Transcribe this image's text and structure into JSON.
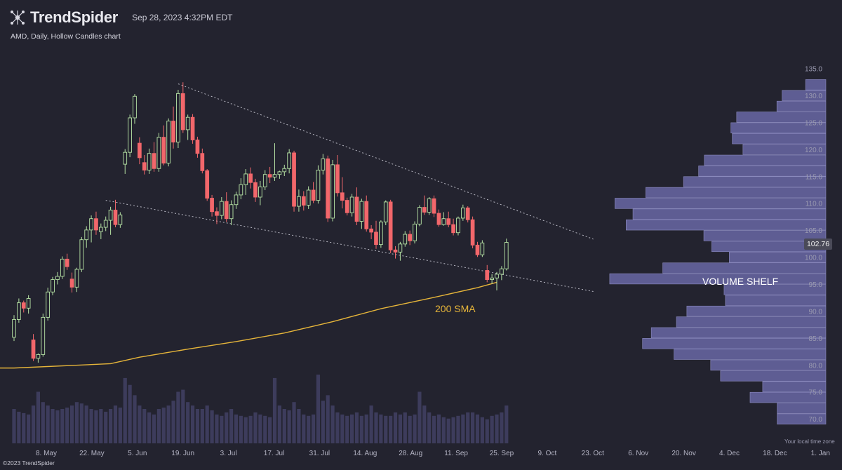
{
  "header": {
    "brand": "TrendSpider",
    "timestamp": "Sep 28, 2023 4:32PM EDT",
    "chart_title": "AMD, Daily, Hollow Candles chart",
    "copyright": "©2023 TrendSpider",
    "timezone_note": "Your local time zone"
  },
  "price_badge": "102.76",
  "annotations": {
    "sma": "200 SMA",
    "volume_shelf": "VOLUME SHELF"
  },
  "colors": {
    "background": "#23232f",
    "up": "#b7e4a5",
    "down": "#f2676b",
    "sma": "#e6b53a",
    "volume_profile": "#5e5d93",
    "volume_bars": "#3d3c5c",
    "trendline": "#b9b9c4"
  },
  "chart_data": {
    "type": "candlestick",
    "ylim": [
      68,
      138
    ],
    "y_ticks": [
      70,
      75,
      80,
      85,
      90,
      95,
      100,
      105,
      110,
      115,
      120,
      125,
      130,
      135
    ],
    "x_ticks": [
      "8. May",
      "22. May",
      "5. Jun",
      "19. Jun",
      "3. Jul",
      "17. Jul",
      "31. Jul",
      "14. Aug",
      "28. Aug",
      "11. Sep",
      "25. Sep",
      "9. Oct",
      "23. Oct",
      "6. Nov",
      "20. Nov",
      "4. Dec",
      "18. Dec",
      "1. Jan"
    ],
    "candles": [
      [
        85.2,
        89.3,
        84.5,
        88.5
      ],
      [
        88.5,
        92.4,
        87.9,
        91.6
      ],
      [
        91.6,
        92.0,
        89.8,
        90.6
      ],
      [
        90.6,
        93.0,
        89.6,
        92.4
      ],
      [
        84.7,
        85.8,
        80.8,
        81.3
      ],
      [
        81.3,
        82.2,
        80.5,
        82.0
      ],
      [
        82.0,
        89.6,
        81.6,
        88.9
      ],
      [
        88.9,
        94.4,
        88.3,
        93.6
      ],
      [
        93.6,
        96.4,
        93.0,
        95.9
      ],
      [
        95.9,
        97.3,
        95.0,
        96.5
      ],
      [
        96.5,
        100.2,
        96.0,
        99.7
      ],
      [
        99.7,
        100.7,
        97.7,
        98.3
      ],
      [
        96.0,
        97.2,
        93.5,
        94.5
      ],
      [
        94.5,
        98.1,
        93.6,
        97.8
      ],
      [
        97.8,
        103.8,
        97.3,
        103.3
      ],
      [
        103.3,
        105.8,
        101.8,
        105.1
      ],
      [
        105.1,
        107.8,
        102.8,
        107.2
      ],
      [
        107.2,
        108.5,
        104.2,
        105.1
      ],
      [
        104.8,
        106.3,
        103.4,
        105.6
      ],
      [
        105.6,
        107.6,
        104.9,
        106.9
      ],
      [
        106.9,
        109.4,
        104.2,
        108.8
      ],
      [
        108.8,
        110.7,
        105.6,
        106.1
      ],
      [
        106.1,
        108.4,
        105.5,
        107.9
      ],
      [
        117.3,
        120.1,
        115.5,
        119.5
      ],
      [
        119.5,
        126.5,
        118.6,
        125.9
      ],
      [
        125.9,
        130.3,
        124.8,
        129.9
      ],
      [
        121.2,
        122.3,
        117.3,
        118.5
      ],
      [
        117.6,
        119.0,
        115.4,
        116.2
      ],
      [
        116.2,
        120.2,
        115.5,
        119.3
      ],
      [
        119.3,
        121.4,
        115.9,
        116.5
      ],
      [
        116.5,
        123.1,
        115.9,
        122.3
      ],
      [
        122.3,
        124.5,
        117.1,
        117.5
      ],
      [
        117.5,
        125.8,
        116.9,
        125.3
      ],
      [
        125.3,
        128.0,
        120.2,
        121.4
      ],
      [
        121.4,
        131.1,
        120.3,
        130.4
      ],
      [
        130.4,
        132.5,
        123.1,
        123.7
      ],
      [
        123.7,
        126.5,
        121.8,
        126.0
      ],
      [
        126.0,
        126.6,
        121.1,
        121.8
      ],
      [
        121.8,
        122.4,
        118.5,
        119.3
      ],
      [
        119.3,
        120.2,
        115.6,
        116.1
      ],
      [
        116.1,
        116.4,
        110.5,
        111.0
      ],
      [
        111.0,
        111.6,
        107.6,
        108.5
      ],
      [
        108.5,
        109.3,
        106.2,
        107.8
      ],
      [
        107.8,
        111.2,
        107.1,
        110.4
      ],
      [
        110.4,
        112.1,
        106.6,
        107.2
      ],
      [
        107.2,
        110.6,
        106.0,
        109.8
      ],
      [
        109.8,
        112.2,
        109.0,
        111.6
      ],
      [
        111.6,
        114.7,
        110.8,
        113.5
      ],
      [
        113.5,
        116.4,
        111.6,
        115.5
      ],
      [
        115.5,
        116.7,
        112.8,
        113.9
      ],
      [
        113.9,
        114.6,
        110.3,
        111.2
      ],
      [
        111.2,
        114.2,
        109.7,
        113.1
      ],
      [
        113.1,
        116.2,
        112.5,
        115.4
      ],
      [
        115.4,
        116.8,
        113.8,
        114.9
      ],
      [
        114.9,
        121.2,
        114.2,
        115.4
      ],
      [
        115.4,
        116.1,
        114.6,
        115.9
      ],
      [
        115.9,
        117.2,
        115.1,
        116.5
      ],
      [
        116.5,
        120.1,
        115.6,
        119.4
      ],
      [
        119.4,
        119.8,
        108.5,
        109.5
      ],
      [
        109.5,
        112.6,
        108.5,
        111.3
      ],
      [
        111.3,
        112.3,
        108.7,
        109.7
      ],
      [
        109.7,
        113.2,
        109.0,
        112.5
      ],
      [
        112.5,
        114.0,
        110.1,
        110.6
      ],
      [
        110.6,
        117.1,
        110.0,
        116.2
      ],
      [
        116.2,
        119.2,
        115.4,
        118.3
      ],
      [
        118.3,
        118.9,
        106.6,
        107.3
      ],
      [
        107.3,
        118.1,
        106.7,
        117.2
      ],
      [
        117.2,
        119.0,
        111.3,
        112.0
      ],
      [
        112.0,
        114.9,
        109.1,
        110.6
      ],
      [
        110.6,
        111.1,
        107.8,
        108.3
      ],
      [
        108.3,
        111.8,
        107.6,
        111.2
      ],
      [
        111.2,
        113.0,
        106.0,
        106.7
      ],
      [
        106.7,
        110.9,
        105.3,
        110.4
      ],
      [
        110.4,
        111.5,
        104.8,
        105.3
      ],
      [
        105.3,
        106.0,
        103.4,
        104.7
      ],
      [
        104.7,
        106.8,
        101.6,
        102.4
      ],
      [
        102.4,
        106.9,
        101.8,
        106.6
      ],
      [
        106.6,
        110.6,
        106.0,
        110.3
      ],
      [
        110.3,
        110.7,
        100.8,
        101.4
      ],
      [
        101.4,
        102.1,
        99.8,
        101.0
      ],
      [
        101.0,
        102.9,
        99.4,
        102.5
      ],
      [
        102.5,
        104.9,
        102.0,
        104.3
      ],
      [
        104.3,
        105.0,
        102.3,
        103.1
      ],
      [
        103.1,
        106.7,
        102.6,
        106.2
      ],
      [
        106.2,
        109.7,
        105.8,
        109.3
      ],
      [
        109.3,
        111.5,
        107.9,
        108.4
      ],
      [
        108.4,
        111.2,
        107.9,
        110.9
      ],
      [
        110.9,
        111.5,
        107.5,
        108.2
      ],
      [
        108.2,
        108.9,
        105.7,
        106.1
      ],
      [
        106.1,
        108.4,
        105.9,
        107.2
      ],
      [
        107.2,
        108.5,
        105.6,
        106.1
      ],
      [
        106.1,
        107.2,
        104.1,
        104.6
      ],
      [
        104.6,
        107.6,
        104.1,
        107.3
      ],
      [
        107.3,
        109.8,
        106.8,
        109.2
      ],
      [
        109.2,
        109.5,
        106.5,
        107.0
      ],
      [
        107.0,
        107.6,
        101.7,
        102.3
      ],
      [
        102.3,
        102.9,
        100.1,
        100.5
      ],
      [
        100.5,
        103.2,
        100.1,
        102.7
      ],
      [
        97.6,
        98.6,
        95.4,
        95.9
      ],
      [
        95.9,
        96.9,
        95.1,
        96.2
      ],
      [
        96.2,
        97.3,
        93.9,
        96.9
      ],
      [
        96.9,
        98.4,
        95.8,
        97.9
      ],
      [
        97.9,
        103.5,
        97.6,
        102.8
      ]
    ],
    "sma200": [
      [
        0,
        79.5
      ],
      [
        20,
        80.3
      ],
      [
        26,
        81.5
      ],
      [
        36,
        83.0
      ],
      [
        46,
        84.4
      ],
      [
        56,
        86.0
      ],
      [
        66,
        88.1
      ],
      [
        76,
        90.5
      ],
      [
        86,
        92.4
      ],
      [
        96,
        94.4
      ],
      [
        100,
        95.4
      ]
    ],
    "volume_profile": [
      {
        "price": 132.0,
        "value": 0.074
      },
      {
        "price": 130.0,
        "value": 0.16
      },
      {
        "price": 128.0,
        "value": 0.179
      },
      {
        "price": 126.0,
        "value": 0.326
      },
      {
        "price": 124.0,
        "value": 0.347
      },
      {
        "price": 122.0,
        "value": 0.342
      },
      {
        "price": 120.0,
        "value": 0.303
      },
      {
        "price": 118.0,
        "value": 0.444
      },
      {
        "price": 116.0,
        "value": 0.465
      },
      {
        "price": 114.0,
        "value": 0.52
      },
      {
        "price": 112.0,
        "value": 0.658
      },
      {
        "price": 110.0,
        "value": 0.771
      },
      {
        "price": 108.0,
        "value": 0.705
      },
      {
        "price": 106.0,
        "value": 0.73
      },
      {
        "price": 104.0,
        "value": 0.446
      },
      {
        "price": 102.0,
        "value": 0.417
      },
      {
        "price": 100.0,
        "value": 0.353
      },
      {
        "price": 98.0,
        "value": 0.596
      },
      {
        "price": 96.0,
        "value": 0.79
      },
      {
        "price": 94.0,
        "value": 0.372
      },
      {
        "price": 92.0,
        "value": 0.367
      },
      {
        "price": 90.0,
        "value": 0.508
      },
      {
        "price": 88.0,
        "value": 0.546
      },
      {
        "price": 86.0,
        "value": 0.638
      },
      {
        "price": 84.0,
        "value": 0.67
      },
      {
        "price": 82.0,
        "value": 0.555
      },
      {
        "price": 80.0,
        "value": 0.421
      },
      {
        "price": 78.0,
        "value": 0.385
      },
      {
        "price": 76.0,
        "value": 0.231
      },
      {
        "price": 74.0,
        "value": 0.277
      },
      {
        "price": 72.0,
        "value": 0.178
      },
      {
        "price": 70.0,
        "value": 0.178
      }
    ],
    "volume": [
      0.5,
      0.46,
      0.44,
      0.42,
      0.55,
      0.75,
      0.6,
      0.55,
      0.5,
      0.48,
      0.5,
      0.52,
      0.55,
      0.6,
      0.58,
      0.55,
      0.5,
      0.48,
      0.5,
      0.46,
      0.5,
      0.55,
      0.52,
      0.95,
      0.85,
      0.7,
      0.55,
      0.5,
      0.45,
      0.42,
      0.5,
      0.52,
      0.55,
      0.62,
      0.75,
      0.78,
      0.6,
      0.55,
      0.5,
      0.5,
      0.55,
      0.48,
      0.42,
      0.4,
      0.45,
      0.5,
      0.42,
      0.4,
      0.38,
      0.4,
      0.45,
      0.42,
      0.4,
      0.38,
      0.95,
      0.55,
      0.5,
      0.48,
      0.6,
      0.5,
      0.42,
      0.4,
      0.42,
      1.0,
      0.62,
      0.7,
      0.55,
      0.45,
      0.42,
      0.4,
      0.42,
      0.45,
      0.4,
      0.42,
      0.55,
      0.45,
      0.42,
      0.4,
      0.4,
      0.45,
      0.42,
      0.45,
      0.4,
      0.42,
      0.75,
      0.55,
      0.45,
      0.4,
      0.42,
      0.38,
      0.36,
      0.38,
      0.4,
      0.42,
      0.45,
      0.45,
      0.42,
      0.38,
      0.35,
      0.4,
      0.42,
      0.45,
      0.55
    ],
    "trendlines": [
      {
        "from": [
          34,
          132.2
        ],
        "to": [
          120,
          103.4
        ]
      },
      {
        "from": [
          19,
          110.6
        ],
        "to": [
          120,
          93.7
        ]
      }
    ]
  }
}
